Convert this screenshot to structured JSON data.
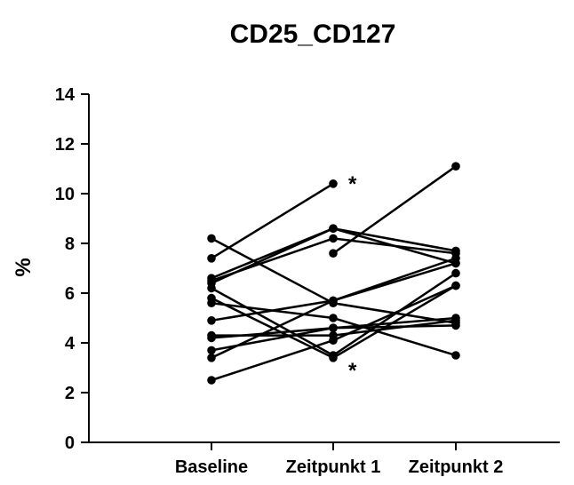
{
  "chart_data": {
    "type": "line",
    "title": "CD25_CD127",
    "xlabel": "",
    "ylabel": "%",
    "categories": [
      "Baseline",
      "Zeitpunkt 1",
      "Zeitpunkt 2"
    ],
    "ylim": [
      0,
      14
    ],
    "yticks": [
      0,
      2,
      4,
      6,
      8,
      10,
      12,
      14
    ],
    "grid": false,
    "legend": "none",
    "line_color": "#000000",
    "marker_color": "#000000",
    "series": [
      {
        "values": [
          7.4,
          10.4,
          null
        ]
      },
      {
        "values": [
          null,
          7.6,
          11.1
        ]
      },
      {
        "values": [
          8.2,
          5.6,
          4.8
        ]
      },
      {
        "values": [
          6.6,
          8.6,
          7.2
        ]
      },
      {
        "values": [
          6.5,
          8.2,
          7.6
        ]
      },
      {
        "values": [
          6.4,
          8.6,
          7.7
        ]
      },
      {
        "values": [
          5.8,
          3.4,
          6.3
        ]
      },
      {
        "values": [
          6.2,
          3.5,
          6.8
        ]
      },
      {
        "values": [
          5.6,
          5.0,
          3.5
        ]
      },
      {
        "values": [
          4.9,
          5.7,
          7.4
        ]
      },
      {
        "values": [
          4.3,
          4.3,
          4.9
        ]
      },
      {
        "values": [
          4.2,
          4.6,
          4.7
        ]
      },
      {
        "values": [
          3.7,
          4.6,
          5.0
        ]
      },
      {
        "values": [
          3.4,
          5.7,
          7.2
        ]
      },
      {
        "values": [
          2.5,
          4.1,
          6.3
        ]
      }
    ],
    "annotations": [
      {
        "text": "*",
        "category": "Zeitpunkt 1",
        "y": 10.4,
        "position": "right-above"
      },
      {
        "text": "*",
        "category": "Zeitpunkt 1",
        "y": 3.4,
        "position": "right-below"
      }
    ]
  }
}
